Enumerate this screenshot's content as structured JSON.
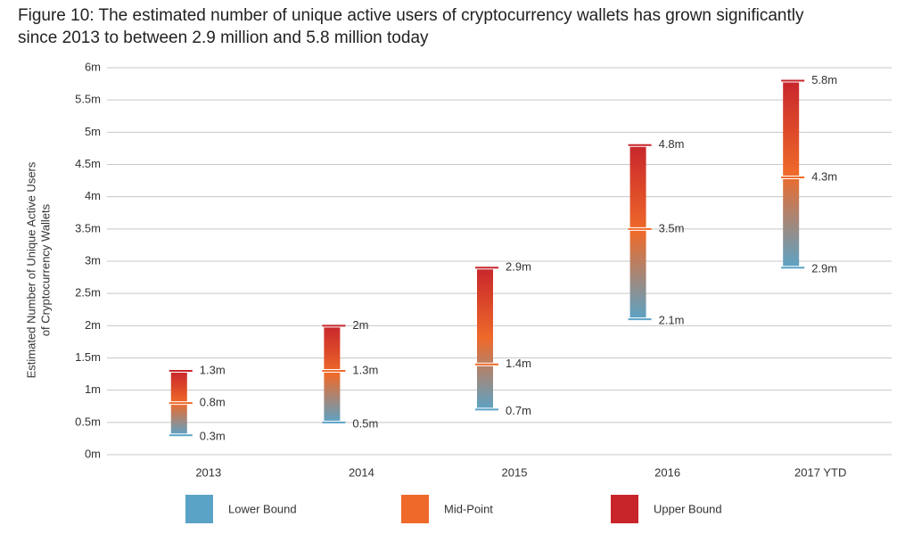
{
  "chart_data": {
    "type": "range",
    "title": [
      "Figure 10: The estimated number of unique active users of cryptocurrency wallets has grown significantly",
      "since 2013 to between 2.9 million and 5.8 million today"
    ],
    "ylabel": [
      "Estimated Number of Unique Active Users",
      "of Cryptocurrency Wallets"
    ],
    "categories": [
      "2013",
      "2014",
      "2015",
      "2016",
      "2017 YTD"
    ],
    "series": [
      {
        "name": "Lower Bound",
        "color": "#5ba3c6",
        "values": [
          0.3,
          0.5,
          0.7,
          2.1,
          2.9
        ],
        "value_labels": [
          "0.3m",
          "0.5m",
          "0.7m",
          "2.1m",
          "2.9m"
        ]
      },
      {
        "name": "Mid-Point",
        "color": "#ef6a2a",
        "values": [
          0.8,
          1.3,
          1.4,
          3.5,
          4.3
        ],
        "value_labels": [
          "0.8m",
          "1.3m",
          "1.4m",
          "3.5m",
          "4.3m"
        ]
      },
      {
        "name": "Upper Bound",
        "color": "#c8252b",
        "values": [
          1.3,
          2,
          2.9,
          4.8,
          5.8
        ],
        "value_labels": [
          "1.3m",
          "2m",
          "2.9m",
          "4.8m",
          "5.8m"
        ]
      }
    ],
    "ylim": [
      0,
      6
    ],
    "yticks": [
      {
        "value": 0,
        "label": "0m"
      },
      {
        "value": 0.5,
        "label": "0.5m"
      },
      {
        "value": 1,
        "label": "1m"
      },
      {
        "value": 1.5,
        "label": "1.5m"
      },
      {
        "value": 2,
        "label": "2m"
      },
      {
        "value": 2.5,
        "label": "2.5m"
      },
      {
        "value": 3,
        "label": "3m"
      },
      {
        "value": 3.5,
        "label": "3.5m"
      },
      {
        "value": 4,
        "label": "4m"
      },
      {
        "value": 4.5,
        "label": "4.5m"
      },
      {
        "value": 5,
        "label": "5m"
      },
      {
        "value": 5.5,
        "label": "5.5m"
      },
      {
        "value": 6,
        "label": "6m"
      }
    ],
    "grid": true
  }
}
